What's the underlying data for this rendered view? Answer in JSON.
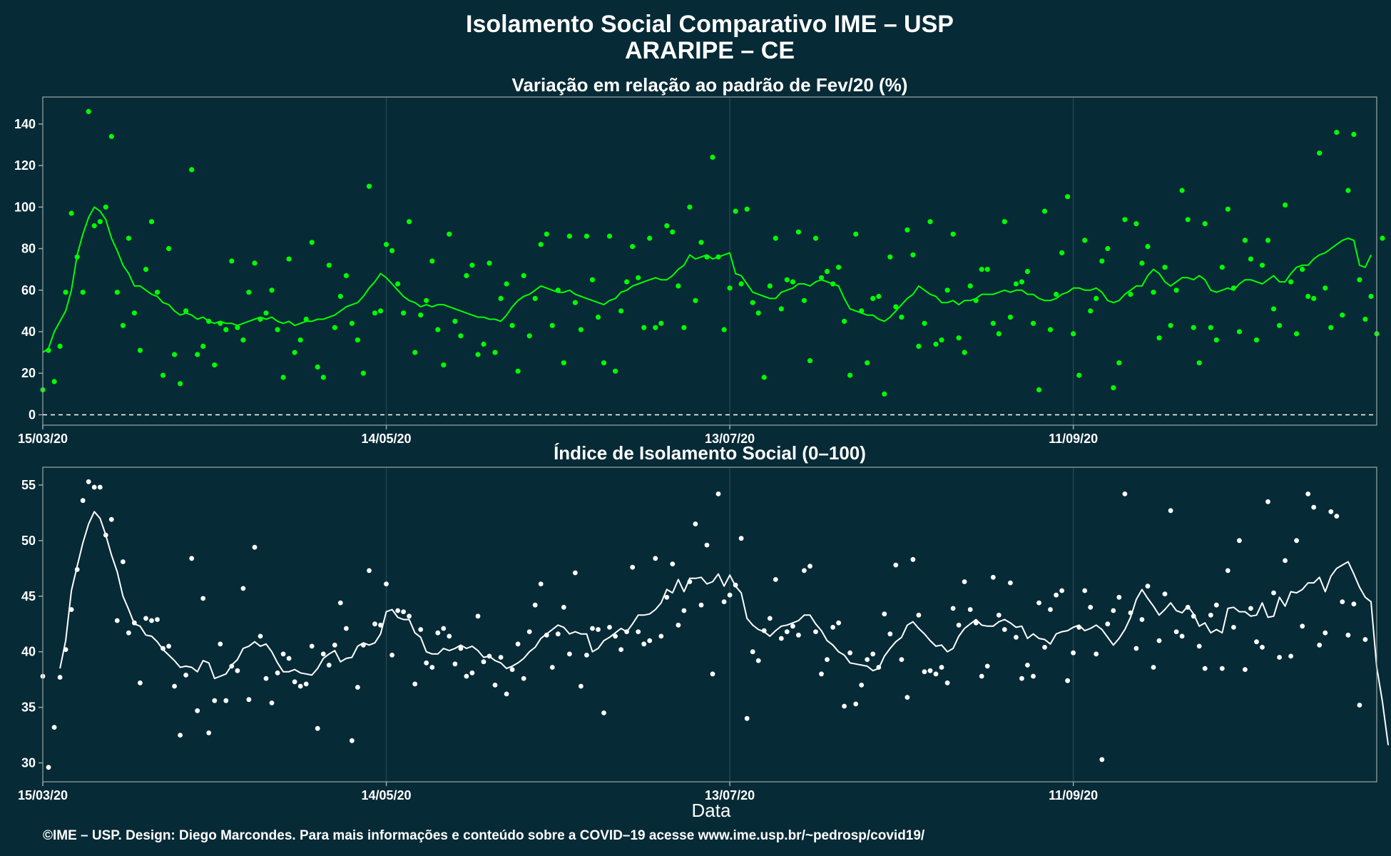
{
  "title_line1": "Isolamento Social Comparativo IME – USP",
  "title_line2": "ARARIPE – CE",
  "xlabel": "Data",
  "footer": "©IME – USP. Design: Diego Marcondes. Para mais informações e conteúdo sobre a COVID–19 acesse www.ime.usp.br/~pedrosp/covid19/",
  "colors": {
    "background": "#062a36",
    "panel_border": "#9aa8ac",
    "grid": "#1f4650",
    "series_top": "#00ff00",
    "series_bottom": "#ffffff"
  },
  "chart_data": [
    {
      "type": "scatter",
      "title": "Variação em relação ao padrão de Fev/20 (%)",
      "x_start_date": "15/03/20",
      "x_ticks": [
        {
          "label": "15/03/20",
          "day": 0
        },
        {
          "label": "14/05/20",
          "day": 60
        },
        {
          "label": "13/07/20",
          "day": 120
        },
        {
          "label": "11/09/20",
          "day": 180
        }
      ],
      "xlim": [
        0,
        233
      ],
      "y_ticks": [
        0,
        20,
        40,
        60,
        80,
        100,
        120,
        140
      ],
      "ylim": [
        -5,
        153
      ],
      "reference_line": 0,
      "series": [
        {
          "kind": "points",
          "values": [
            12,
            31,
            16,
            33,
            59,
            97,
            76,
            59,
            146,
            91,
            93,
            100,
            134,
            59,
            43,
            85,
            49,
            31,
            70,
            93,
            59,
            19,
            80,
            29,
            15,
            50,
            118,
            29,
            33,
            45,
            24,
            44,
            41,
            74,
            42,
            36,
            59,
            73,
            46,
            49,
            60,
            41,
            18,
            75,
            30,
            36,
            46,
            83,
            23,
            18,
            72,
            42,
            57,
            67,
            44,
            36,
            20,
            110,
            49,
            50,
            82,
            79,
            63,
            49,
            93,
            30,
            48,
            55,
            74,
            41,
            24,
            87,
            45,
            38,
            67,
            72,
            29,
            34,
            73,
            30,
            56,
            63,
            43,
            21,
            67,
            38,
            56,
            82,
            87,
            43,
            60,
            25,
            86,
            54,
            41,
            86,
            65,
            47,
            25,
            86,
            21,
            50,
            64,
            81,
            66,
            42,
            85,
            42,
            44,
            91,
            88,
            62,
            42,
            100,
            55,
            83,
            76,
            124,
            76,
            41,
            61,
            98,
            63,
            99,
            54,
            49,
            18,
            62,
            85,
            51,
            65,
            64,
            88,
            55,
            26,
            85,
            66,
            69,
            63,
            71,
            45,
            19,
            87,
            50,
            25,
            56,
            57,
            10,
            76,
            52,
            47,
            89,
            77,
            33,
            44,
            93,
            34,
            36,
            60,
            87,
            37,
            30,
            62,
            55,
            70,
            70,
            44,
            39,
            93,
            47,
            63,
            64,
            69,
            44,
            12,
            98,
            41,
            58,
            78,
            105,
            39,
            19,
            84,
            50,
            56,
            74,
            80,
            13,
            25,
            94,
            58,
            92,
            73,
            81,
            59,
            37,
            71,
            43,
            60,
            108,
            94,
            42,
            25,
            92,
            42,
            36,
            71,
            99,
            61,
            40,
            84,
            75,
            36,
            72,
            84,
            51,
            43,
            101,
            64,
            39,
            70,
            57,
            56,
            126,
            61,
            42,
            136,
            48,
            108,
            135,
            65,
            46,
            57,
            39,
            85
          ]
        },
        {
          "kind": "moving_average",
          "values": [
            30,
            32,
            40,
            45,
            50,
            60,
            77,
            87,
            95,
            100,
            98,
            94,
            85,
            79,
            72,
            68,
            62,
            62,
            60,
            58,
            57,
            54,
            53,
            50,
            48,
            49,
            48,
            46,
            47,
            45,
            44,
            45,
            44,
            44,
            43,
            44,
            45,
            46,
            47,
            46,
            47,
            45,
            44,
            45,
            43,
            44,
            45,
            45,
            46,
            46,
            47,
            48,
            50,
            52,
            53,
            54,
            57,
            61,
            64,
            68,
            66,
            63,
            60,
            57,
            55,
            54,
            52,
            53,
            52,
            53,
            53,
            52,
            51,
            50,
            49,
            48,
            47,
            47,
            46,
            46,
            45,
            48,
            52,
            55,
            57,
            58,
            60,
            62,
            61,
            60,
            59,
            59,
            60,
            58,
            57,
            56,
            55,
            54,
            53,
            55,
            56,
            59,
            60,
            62,
            63,
            64,
            65,
            66,
            65,
            65,
            67,
            70,
            72,
            77,
            75,
            76,
            77,
            75,
            76,
            77,
            78,
            68,
            67,
            63,
            59,
            58,
            57,
            56,
            56,
            59,
            60,
            61,
            63,
            63,
            62,
            64,
            65,
            64,
            63,
            62,
            56,
            51,
            50,
            49,
            48,
            48,
            46,
            45,
            47,
            50,
            53,
            56,
            58,
            62,
            60,
            58,
            57,
            54,
            54,
            55,
            53,
            55,
            55,
            56,
            58,
            58,
            58,
            59,
            60,
            59,
            60,
            60,
            58,
            58,
            56,
            55,
            55,
            56,
            58,
            59,
            61,
            61,
            60,
            60,
            61,
            59,
            55,
            54,
            55,
            58,
            60,
            62,
            62,
            67,
            70,
            68,
            64,
            62,
            64,
            66,
            66,
            65,
            67,
            65,
            60,
            59,
            60,
            61,
            60,
            63,
            65,
            65,
            64,
            63,
            65,
            67,
            64,
            64,
            68,
            71,
            72,
            72,
            75,
            77,
            78,
            80,
            82,
            84,
            85,
            84,
            72,
            71,
            77
          ]
        }
      ]
    },
    {
      "type": "scatter",
      "title": "Índice de Isolamento Social (0–100)",
      "x_start_date": "15/03/20",
      "x_ticks": [
        {
          "label": "15/03/20",
          "day": 0
        },
        {
          "label": "14/05/20",
          "day": 60
        },
        {
          "label": "13/07/20",
          "day": 120
        },
        {
          "label": "11/09/20",
          "day": 180
        }
      ],
      "xlim": [
        0,
        233
      ],
      "y_ticks": [
        30,
        35,
        40,
        45,
        50,
        55
      ],
      "ylim": [
        28.3,
        56.6
      ],
      "series": [
        {
          "kind": "points",
          "values": [
            37.8,
            29.6,
            33.2,
            37.7,
            40.2,
            43.8,
            47.4,
            53.6,
            55.3,
            54.8,
            54.8,
            50.5,
            51.9,
            42.8,
            48.1,
            41.7,
            42.6,
            37.2,
            43,
            42.8,
            42.9,
            40.3,
            40.5,
            36.9,
            32.5,
            37.9,
            48.4,
            34.7,
            44.8,
            32.7,
            35.6,
            40.7,
            35.6,
            38.7,
            38.3,
            45.7,
            35.7,
            49.4,
            41.4,
            37.6,
            35.4,
            38.1,
            39.8,
            39.4,
            37.3,
            36.9,
            37.1,
            40.5,
            33.1,
            39.8,
            38.8,
            40.6,
            44.4,
            42.1,
            32,
            36.8,
            40.6,
            47.3,
            42.5,
            42.4,
            46.1,
            39.7,
            43.7,
            43.6,
            43.2,
            37.1,
            42,
            39,
            38.6,
            41.7,
            42.1,
            41.4,
            38.9,
            40.3,
            37.8,
            38.1,
            43.2,
            39.1,
            39.6,
            37,
            39.5,
            36.2,
            38.4,
            40.7,
            37.6,
            41.8,
            44.2,
            46.1,
            41.5,
            38.6,
            41.6,
            44,
            39.8,
            47.1,
            36.9,
            39.7,
            42.1,
            42,
            34.5,
            42.2,
            41.4,
            40.2,
            41.8,
            47.6,
            41.8,
            40.7,
            41,
            48.4,
            41.4,
            44.9,
            47.9,
            42.4,
            43.7,
            46.3,
            51.5,
            44.2,
            49.6,
            38,
            54.2,
            44.5,
            45.1,
            46,
            50.2,
            34,
            40,
            39.2,
            41.9,
            43,
            46.5,
            41.2,
            41.8,
            42.3,
            41.5,
            47.3,
            47.7,
            41.8,
            38,
            39.3,
            42.2,
            42.6,
            35.1,
            39.9,
            35.3,
            37,
            39.3,
            39.8,
            38.6,
            43.4,
            41.6,
            47.8,
            39.3,
            35.9,
            48.3,
            43.3,
            38.2,
            38.3,
            38,
            38.6,
            37.2,
            43.9,
            42.4,
            46.3,
            43.8,
            42.6,
            37.8,
            38.7,
            46.7,
            43.3,
            42,
            46.2,
            41.3,
            37.6,
            38.8,
            37.8,
            44.4,
            40.4,
            43.8,
            45.1,
            45.5,
            37.4,
            39.9,
            42.2,
            45.5,
            44,
            39.8,
            30.3,
            42.5,
            43.7,
            44.9,
            54.2,
            43.5,
            40.3,
            42.9,
            45.9,
            38.6,
            41,
            45.2,
            52.7,
            41.8,
            41.4,
            44,
            43.2,
            40.5,
            38.5,
            43.3,
            44.2,
            38.5,
            47.3,
            42.2,
            50,
            38.4,
            43.9,
            40.9,
            40.4,
            53.5,
            45.3,
            39.5,
            48.2,
            39.6,
            50,
            42.3,
            54.2,
            53,
            40.6,
            41.7,
            52.6,
            52.2,
            44.5,
            41.5,
            44.3,
            35.2,
            41.1
          ]
        },
        {
          "kind": "moving_average",
          "values": [
            null,
            null,
            null,
            38.5,
            41,
            45.5,
            47.7,
            49.8,
            51.5,
            52.6,
            52,
            50.5,
            48.7,
            47.2,
            45,
            43.8,
            42.5,
            42.3,
            41.5,
            41.4,
            40.9,
            40.2,
            39.7,
            39.2,
            38.6,
            38.7,
            38.6,
            38.2,
            39.2,
            39,
            37.6,
            37.8,
            38,
            38.8,
            39.3,
            40.3,
            40.5,
            40.9,
            40.5,
            40.7,
            40,
            39,
            38.2,
            38.2,
            38.4,
            38.1,
            38,
            37.9,
            38.5,
            39.4,
            39.8,
            40.1,
            39.1,
            39.4,
            39.5,
            40.5,
            40.8,
            40.6,
            40.8,
            41.6,
            43.6,
            43.8,
            43.1,
            42.9,
            42.9,
            41.7,
            41.3,
            40,
            39.8,
            39.8,
            40.3,
            40.1,
            40.3,
            40.6,
            40.3,
            40.5,
            40.1,
            39.5,
            39.6,
            39.2,
            39,
            38.5,
            38.7,
            39,
            39.4,
            40,
            40.4,
            41.2,
            41.6,
            42,
            42.4,
            42.2,
            41.6,
            41.8,
            41.6,
            41.6,
            40,
            40.3,
            41,
            41.3,
            41.7,
            42.1,
            41.8,
            42.5,
            43.3,
            43.3,
            43.4,
            43.8,
            44.4,
            45.6,
            45.3,
            46.5,
            45.4,
            46.6,
            46.6,
            46.7,
            46.1,
            46.3,
            47,
            45.9,
            46.9,
            45.9,
            45.3,
            43,
            42.4,
            42,
            41.8,
            41.4,
            41.9,
            42.3,
            42.4,
            42.6,
            42.8,
            43.3,
            43.3,
            42.5,
            41.9,
            41,
            40.6,
            40,
            39.7,
            39,
            38.9,
            38.8,
            38.7,
            38.3,
            38.5,
            39.6,
            40.3,
            40.9,
            41.3,
            42.4,
            42.7,
            42.1,
            41.6,
            41,
            40.5,
            40.6,
            40,
            40.3,
            41.4,
            42.1,
            42.5,
            42.9,
            42.4,
            42.3,
            42.3,
            42.7,
            42.9,
            42.6,
            42.2,
            42.3,
            41.2,
            41.6,
            41.2,
            41.1,
            40.7,
            41.6,
            41.8,
            41.9,
            42.2,
            42.4,
            41.9,
            42.1,
            42.4,
            42,
            41.3,
            40.6,
            41.2,
            42,
            43.1,
            44.7,
            45.6,
            44.8,
            44.1,
            43.3,
            43.8,
            44.4,
            43.7,
            43.5,
            44.1,
            43.4,
            42.3,
            42.6,
            41.7,
            42,
            41.7,
            43.9,
            44,
            43.6,
            43.6,
            43.2,
            43.3,
            44.4,
            43.1,
            43.2,
            44.9,
            44.1,
            45.4,
            45.3,
            45.6,
            46.2,
            46.2,
            46.7,
            45.4,
            46.8,
            47.5,
            47.8,
            48.1,
            47,
            45.8,
            44.9,
            44.5,
            38.6,
            35.5,
            31.6
          ]
        }
      ]
    }
  ]
}
